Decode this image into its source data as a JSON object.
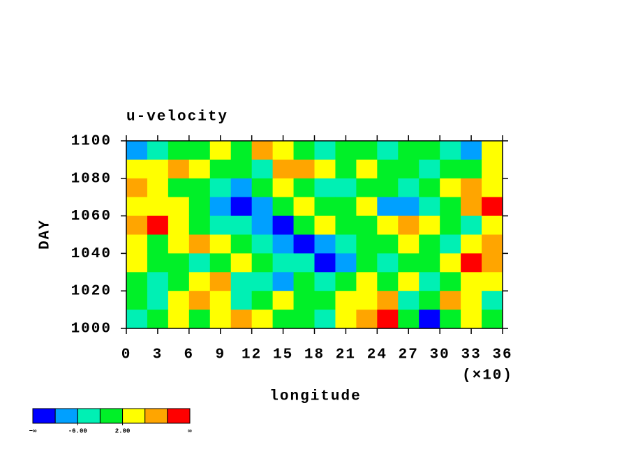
{
  "chart_data": {
    "type": "contour",
    "title": "u-velocity",
    "x_label": "longitude",
    "y_label": "DAY",
    "x_multiplier_label": "(×10)",
    "x": [
      1,
      3,
      5,
      7,
      9,
      11,
      13,
      15,
      17,
      19,
      21,
      23,
      25,
      27,
      29,
      31,
      33,
      35
    ],
    "y": [
      1095,
      1085,
      1075,
      1065,
      1055,
      1045,
      1035,
      1025,
      1015,
      1005
    ],
    "z": [
      [
        -8,
        -4,
        0,
        0,
        4,
        0,
        8,
        4,
        0,
        -4,
        0,
        0,
        -4,
        0,
        0,
        -4,
        -8,
        4
      ],
      [
        4,
        4,
        8,
        4,
        0,
        0,
        -4,
        8,
        8,
        4,
        0,
        4,
        0,
        0,
        -4,
        0,
        0,
        4
      ],
      [
        8,
        4,
        0,
        0,
        -4,
        -8,
        0,
        4,
        0,
        -4,
        -4,
        0,
        0,
        -4,
        0,
        4,
        8,
        4
      ],
      [
        4,
        4,
        4,
        0,
        -8,
        -12,
        -8,
        0,
        4,
        0,
        0,
        4,
        -8,
        -8,
        -4,
        0,
        8,
        12
      ],
      [
        8,
        12,
        4,
        0,
        -4,
        -4,
        -8,
        -12,
        0,
        4,
        0,
        0,
        4,
        8,
        4,
        0,
        -4,
        4
      ],
      [
        4,
        0,
        4,
        8,
        4,
        0,
        -4,
        -8,
        -12,
        -8,
        -4,
        0,
        0,
        4,
        0,
        -4,
        4,
        8
      ],
      [
        4,
        0,
        0,
        -4,
        0,
        4,
        0,
        -4,
        -4,
        -12,
        -8,
        0,
        -4,
        0,
        0,
        4,
        12,
        8
      ],
      [
        0,
        -4,
        0,
        4,
        8,
        -4,
        -4,
        -8,
        0,
        -4,
        0,
        4,
        0,
        4,
        -4,
        0,
        4,
        4
      ],
      [
        0,
        -4,
        4,
        8,
        4,
        -4,
        0,
        4,
        0,
        0,
        4,
        4,
        8,
        -4,
        0,
        8,
        4,
        -4
      ],
      [
        -4,
        0,
        4,
        0,
        4,
        8,
        4,
        0,
        0,
        -4,
        4,
        8,
        12,
        0,
        -12,
        0,
        4,
        0
      ]
    ],
    "xlim": [
      0,
      36
    ],
    "ylim": [
      1000,
      1100
    ],
    "xticks": [
      0,
      3,
      6,
      9,
      12,
      15,
      18,
      21,
      24,
      27,
      30,
      33,
      36
    ],
    "yticks": [
      1000,
      1020,
      1040,
      1060,
      1080,
      1100
    ],
    "levels": [
      -10,
      -6,
      -2,
      2,
      6,
      10
    ],
    "colors": [
      "#0000ff",
      "#00a0ff",
      "#00f0b4",
      "#00f028",
      "#ffff00",
      "#ffa500",
      "#ff0000"
    ],
    "colorbar_ticks": [
      {
        "value": -6,
        "label": "-6.00"
      },
      {
        "value": 2,
        "label": "2.00"
      }
    ],
    "colorbar_min_label": "−∞",
    "colorbar_max_label": "∞"
  }
}
